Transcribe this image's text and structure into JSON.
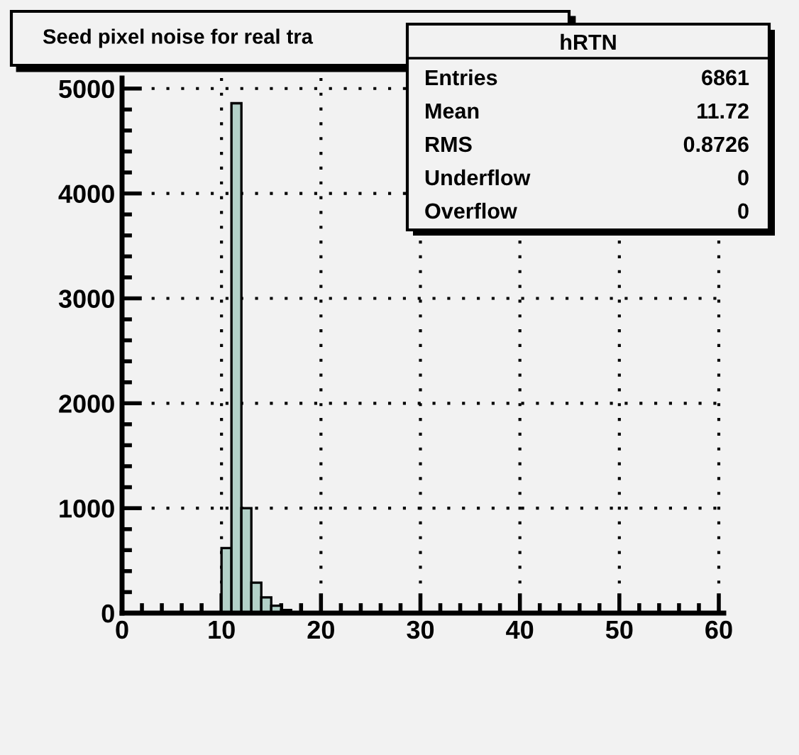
{
  "chart_data": {
    "type": "histogram",
    "title": "Seed pixel noise for real tra",
    "bins": [
      10,
      11,
      12,
      13,
      14,
      15,
      16,
      17
    ],
    "values": [
      620,
      4860,
      1000,
      290,
      150,
      70,
      30
    ],
    "color": "#b3d1c8",
    "xlim": [
      0,
      60.5
    ],
    "xticks": [
      0,
      10,
      20,
      30,
      40,
      50,
      60
    ],
    "ylim": [
      0,
      5100
    ],
    "yticks": [
      0,
      1000,
      2000,
      3000,
      4000,
      5000
    ],
    "grid": true,
    "annotations": [
      "hRTN",
      "Entries",
      "6861",
      "Mean",
      "11.72",
      "RMS",
      "0.8726",
      "Underflow",
      "0",
      "Overflow",
      "0"
    ]
  }
}
